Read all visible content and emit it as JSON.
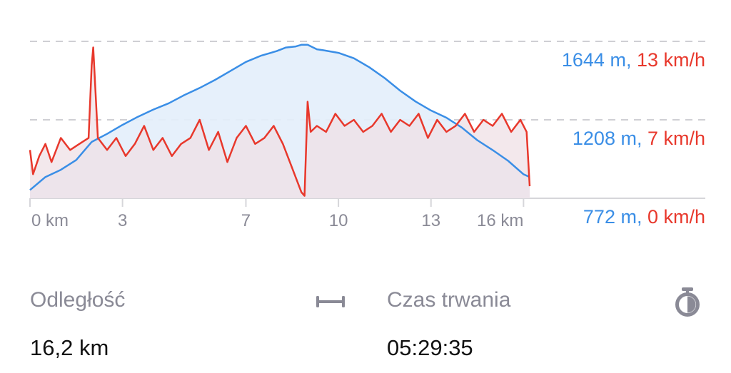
{
  "chart_data": {
    "type": "area",
    "x_ticks": [
      {
        "value": 0,
        "label": "0 km"
      },
      {
        "value": 3,
        "label": "3"
      },
      {
        "value": 7,
        "label": "7"
      },
      {
        "value": 10,
        "label": "10"
      },
      {
        "value": 13,
        "label": "13"
      },
      {
        "value": 16,
        "label": "16 km"
      }
    ],
    "xlim": [
      0,
      16.2
    ],
    "right_labels": [
      {
        "elevation": "1644 m",
        "separator": ", ",
        "speed": "13 km/h"
      },
      {
        "elevation": "1208 m",
        "separator": ", ",
        "speed": "7 km/h"
      },
      {
        "elevation": "772 m",
        "separator": ", ",
        "speed": "0 km/h"
      }
    ],
    "elevation_ylim": [
      772,
      1644
    ],
    "speed_ylim": [
      0,
      13
    ],
    "series": [
      {
        "key": "elevation",
        "unit": "m",
        "color": "#3a8ee6",
        "fill": "#e3eefb",
        "x": [
          0,
          0.5,
          1,
          1.5,
          2,
          2.5,
          3,
          3.5,
          4,
          4.5,
          5,
          5.5,
          6,
          6.5,
          7,
          7.5,
          8,
          8.3,
          8.6,
          8.8,
          9,
          9.3,
          9.5,
          10,
          10.5,
          11,
          11.5,
          12,
          12.5,
          13,
          13.5,
          14,
          14.5,
          15,
          15.5,
          16,
          16.2
        ],
        "values": [
          818,
          890,
          930,
          985,
          1085,
          1130,
          1180,
          1225,
          1265,
          1300,
          1345,
          1385,
          1430,
          1480,
          1530,
          1565,
          1590,
          1610,
          1615,
          1625,
          1625,
          1600,
          1595,
          1580,
          1550,
          1500,
          1440,
          1370,
          1310,
          1260,
          1220,
          1165,
          1095,
          1040,
          980,
          905,
          890
        ]
      },
      {
        "key": "speed",
        "unit": "km/h",
        "color": "#e8382c",
        "fill": "#efe0e6",
        "x": [
          0,
          0.1,
          0.3,
          0.5,
          0.7,
          1,
          1.3,
          1.6,
          1.9,
          2.0,
          2.05,
          2.2,
          2.5,
          2.8,
          3.1,
          3.4,
          3.7,
          4,
          4.3,
          4.6,
          4.9,
          5.2,
          5.5,
          5.8,
          6.1,
          6.4,
          6.7,
          7,
          7.3,
          7.6,
          7.9,
          8.2,
          8.5,
          8.8,
          8.9,
          9.0,
          9.1,
          9.3,
          9.6,
          9.9,
          10.2,
          10.5,
          10.8,
          11.1,
          11.4,
          11.7,
          12,
          12.3,
          12.6,
          12.9,
          13.2,
          13.5,
          13.8,
          14.1,
          14.4,
          14.7,
          15,
          15.3,
          15.6,
          15.9,
          16.1,
          16.2
        ],
        "values": [
          4,
          2,
          3.5,
          4.5,
          3,
          5,
          4,
          4.5,
          5,
          11,
          12.5,
          5,
          4,
          5,
          3.5,
          4.5,
          6,
          4,
          5,
          3.5,
          4.5,
          5,
          6.5,
          4,
          5.5,
          3,
          5,
          6,
          4.5,
          5,
          6,
          4.5,
          2.5,
          0.5,
          0.2,
          8,
          5.5,
          6,
          5.5,
          7,
          6,
          6.5,
          5.5,
          6,
          7,
          5.5,
          6.5,
          6,
          7,
          5,
          6.5,
          5.5,
          6,
          7,
          5.5,
          6.5,
          6,
          7,
          5.5,
          6.5,
          5.5,
          1
        ]
      }
    ]
  },
  "stats": [
    {
      "label": "Odległość",
      "value": "16,2 km",
      "icon": "distance-icon"
    },
    {
      "label": "Czas trwania",
      "value": "05:29:35",
      "icon": "stopwatch-icon"
    }
  ]
}
